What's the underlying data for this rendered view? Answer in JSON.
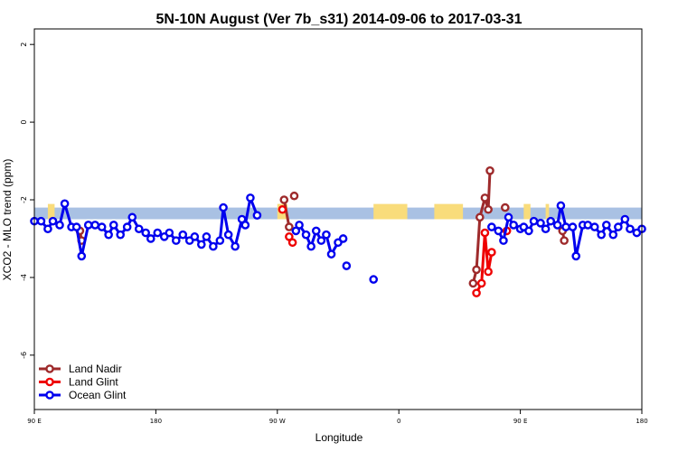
{
  "chart_data": {
    "type": "line",
    "title": "5N-10N August (Ver 7b_s31)   2014-09-06 to 2017-03-31",
    "xlabel": "Longitude",
    "ylabel": "XCO2 - MLO trend (ppm)",
    "xlim": [
      -90,
      270
    ],
    "ylim": [
      -7.4,
      2.4
    ],
    "x_ticks": [
      {
        "value": -90,
        "label": "90 E"
      },
      {
        "value": -18,
        "label": "180"
      },
      {
        "value": 54,
        "label": "90 W"
      },
      {
        "value": 126,
        "label": "0"
      },
      {
        "value": 198,
        "label": "90 E"
      },
      {
        "value": 270,
        "label": "180"
      }
    ],
    "y_ticks": [
      {
        "value": 2,
        "label": "2"
      },
      {
        "value": 0,
        "label": "0"
      },
      {
        "value": -2,
        "label": "-2"
      },
      {
        "value": -4,
        "label": "-4"
      },
      {
        "value": -6,
        "label": "-6"
      }
    ],
    "grid": false,
    "legend_position": "bottom-left",
    "map_band": {
      "y_top": -2.2,
      "y_bottom": -2.5,
      "ocean_color": "#a9c1e3",
      "land_color": "#f9dc7b"
    },
    "land_segments": [
      [
        -82,
        -78
      ],
      [
        54,
        60
      ],
      [
        111,
        131
      ],
      [
        147,
        164
      ],
      [
        200,
        204
      ],
      [
        213,
        215
      ]
    ],
    "series": [
      {
        "name": "Land Nadir",
        "color": "#9e2a2b",
        "segments": [
          [
            [
              -63,
              -2.8
            ],
            [
              -62,
              -3.05
            ]
          ],
          [
            [
              58,
              -2.0
            ],
            [
              61,
              -2.7
            ]
          ],
          [
            [
              64,
              -1.9
            ]
          ],
          [
            [
              170,
              -4.15
            ],
            [
              172,
              -3.8
            ],
            [
              174,
              -2.45
            ],
            [
              177,
              -1.95
            ],
            [
              179,
              -2.25
            ],
            [
              180,
              -1.25
            ]
          ],
          [
            [
              189,
              -2.2
            ]
          ],
          [
            [
              223,
              -2.8
            ],
            [
              224,
              -3.05
            ]
          ]
        ]
      },
      {
        "name": "Land Glint",
        "color": "#ee0000",
        "segments": [
          [
            [
              57,
              -2.25
            ]
          ],
          [
            [
              61,
              -2.95
            ],
            [
              63,
              -3.1
            ]
          ],
          [
            [
              172,
              -4.4
            ],
            [
              175,
              -4.15
            ],
            [
              177,
              -2.85
            ],
            [
              179,
              -3.85
            ],
            [
              181,
              -3.35
            ]
          ],
          [
            [
              190,
              -2.8
            ]
          ]
        ]
      },
      {
        "name": "Ocean Glint",
        "color": "#0000ee",
        "segments": [
          [
            [
              -90,
              -2.55
            ],
            [
              -86,
              -2.55
            ],
            [
              -82,
              -2.75
            ],
            [
              -79,
              -2.55
            ],
            [
              -75,
              -2.65
            ],
            [
              -72,
              -2.1
            ],
            [
              -68,
              -2.7
            ],
            [
              -65,
              -2.7
            ],
            [
              -62,
              -3.45
            ],
            [
              -58,
              -2.65
            ],
            [
              -54,
              -2.65
            ],
            [
              -50,
              -2.7
            ],
            [
              -46,
              -2.9
            ],
            [
              -43,
              -2.65
            ],
            [
              -39,
              -2.9
            ],
            [
              -35,
              -2.7
            ],
            [
              -32,
              -2.45
            ],
            [
              -28,
              -2.75
            ],
            [
              -24,
              -2.85
            ],
            [
              -21,
              -3.0
            ],
            [
              -17,
              -2.85
            ],
            [
              -13,
              -2.95
            ],
            [
              -10,
              -2.85
            ],
            [
              -6,
              -3.05
            ],
            [
              -2,
              -2.9
            ],
            [
              2,
              -3.05
            ],
            [
              5,
              -2.95
            ],
            [
              9,
              -3.15
            ],
            [
              12,
              -2.95
            ],
            [
              16,
              -3.2
            ],
            [
              20,
              -3.05
            ],
            [
              22,
              -2.2
            ],
            [
              25,
              -2.9
            ],
            [
              29,
              -3.2
            ],
            [
              33,
              -2.5
            ],
            [
              35,
              -2.65
            ],
            [
              38,
              -1.95
            ],
            [
              42,
              -2.4
            ]
          ],
          [
            [
              65,
              -2.8
            ],
            [
              67,
              -2.65
            ],
            [
              71,
              -2.9
            ],
            [
              74,
              -3.2
            ],
            [
              77,
              -2.8
            ],
            [
              80,
              -3.05
            ],
            [
              83,
              -2.9
            ],
            [
              86,
              -3.4
            ],
            [
              90,
              -3.1
            ],
            [
              93,
              -3.0
            ]
          ],
          [
            [
              95,
              -3.7
            ]
          ],
          [
            [
              111,
              -4.05
            ]
          ],
          [
            [
              181,
              -2.7
            ],
            [
              185,
              -2.8
            ],
            [
              188,
              -3.05
            ],
            [
              191,
              -2.45
            ],
            [
              194,
              -2.65
            ],
            [
              198,
              -2.75
            ],
            [
              200,
              -2.7
            ],
            [
              203,
              -2.8
            ],
            [
              206,
              -2.55
            ],
            [
              210,
              -2.6
            ],
            [
              213,
              -2.75
            ],
            [
              216,
              -2.55
            ],
            [
              220,
              -2.65
            ],
            [
              222,
              -2.15
            ],
            [
              225,
              -2.7
            ],
            [
              229,
              -2.7
            ],
            [
              231,
              -3.45
            ],
            [
              235,
              -2.65
            ],
            [
              238,
              -2.65
            ],
            [
              242,
              -2.7
            ],
            [
              246,
              -2.9
            ],
            [
              249,
              -2.65
            ],
            [
              253,
              -2.9
            ],
            [
              256,
              -2.7
            ],
            [
              260,
              -2.5
            ],
            [
              263,
              -2.75
            ],
            [
              267,
              -2.85
            ],
            [
              270,
              -2.75
            ]
          ]
        ]
      }
    ]
  }
}
